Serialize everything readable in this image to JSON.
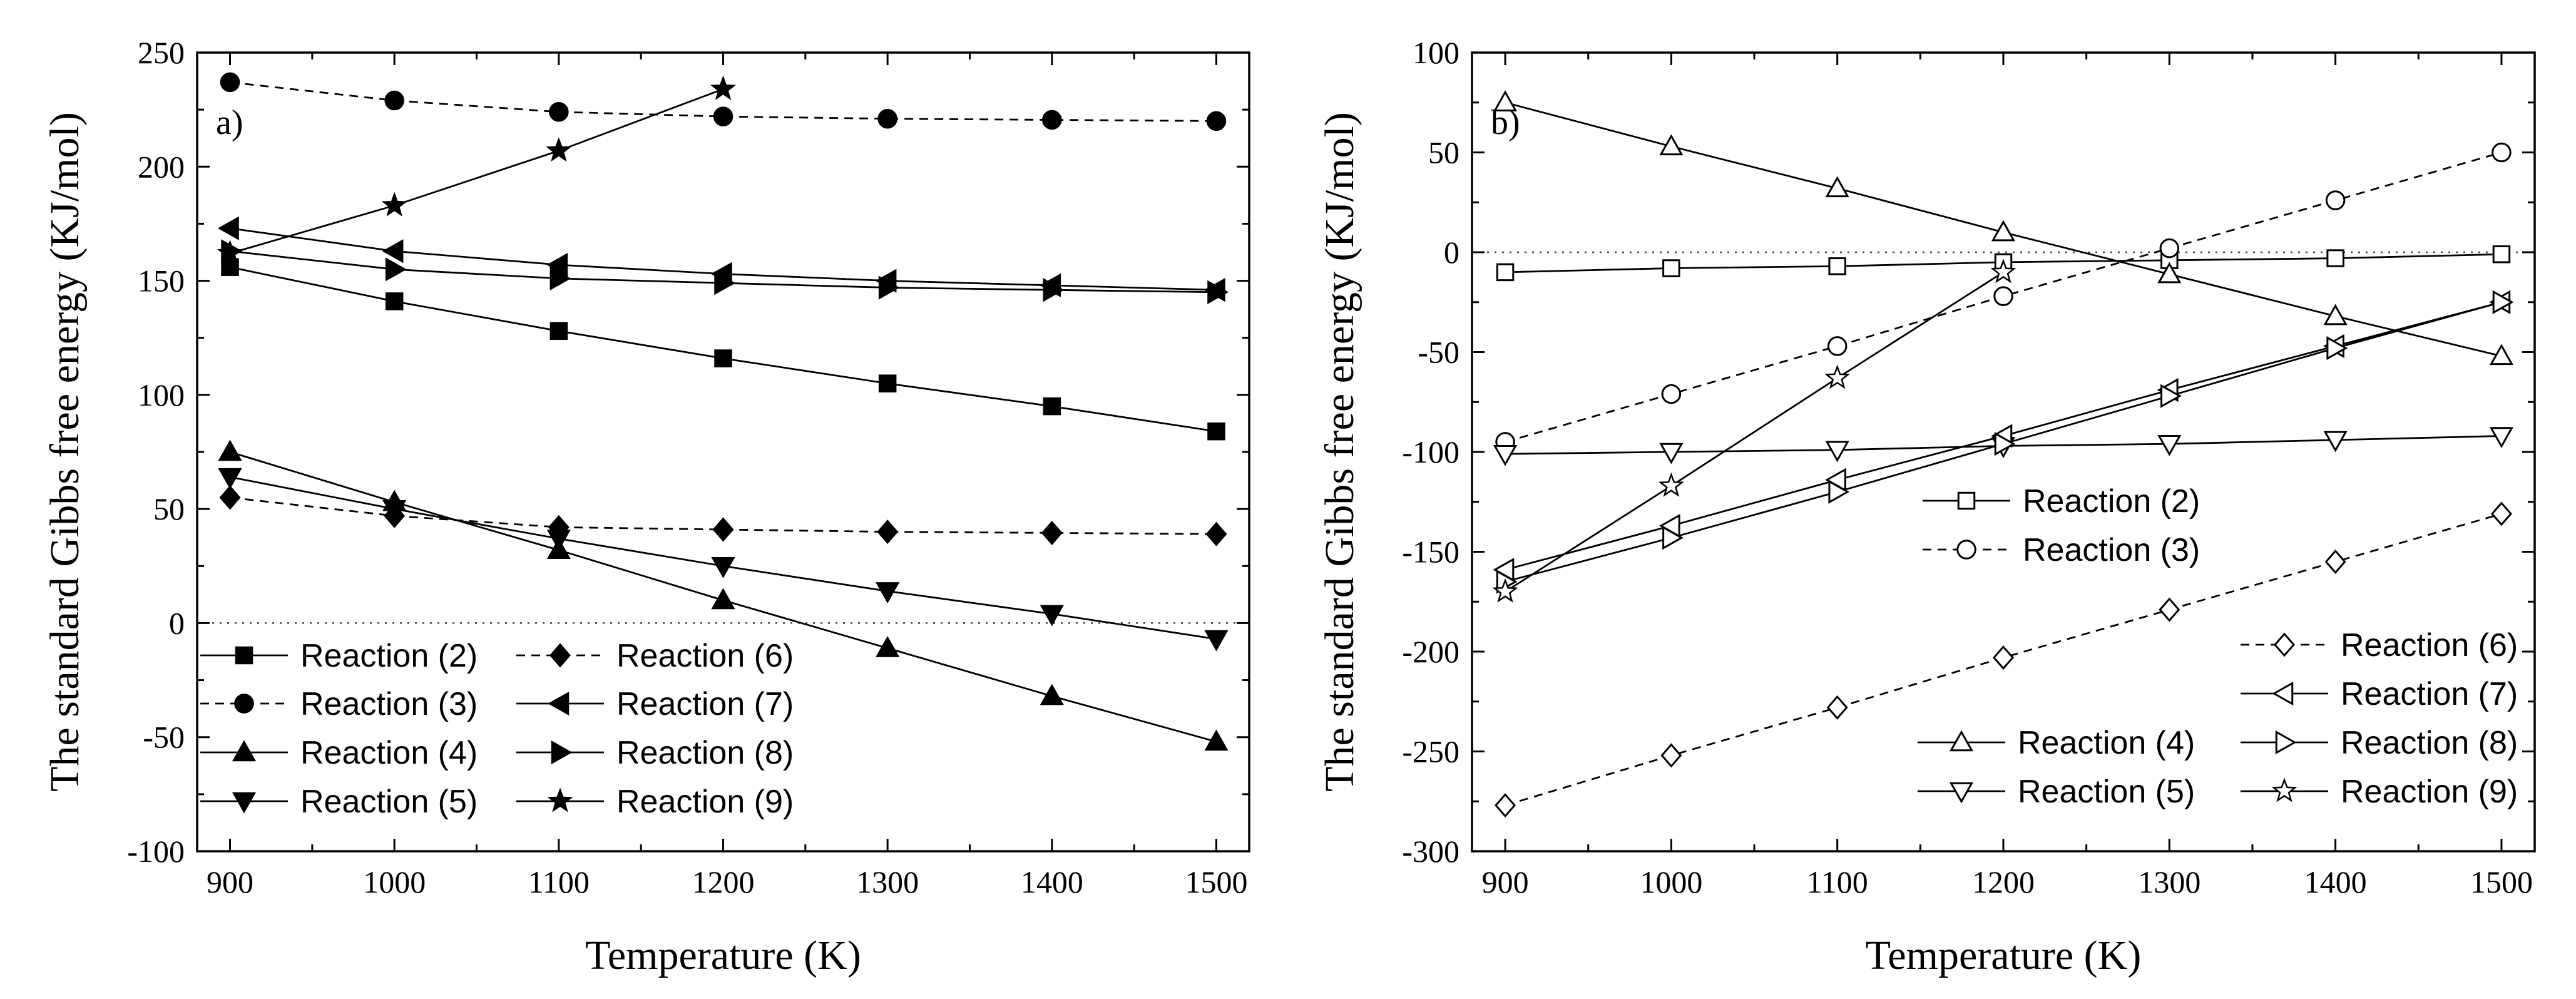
{
  "chart_data": [
    {
      "type": "line",
      "panel_label": "a)",
      "xlabel": "Temperature (K)",
      "ylabel": "The standard Gibbs free energy (KJ/mol)",
      "xlim": [
        880,
        1520
      ],
      "ylim": [
        -100,
        250
      ],
      "xticks": [
        900,
        1000,
        1100,
        1200,
        1300,
        1400,
        1500
      ],
      "yticks": [
        -100,
        -50,
        0,
        50,
        100,
        150,
        200,
        250
      ],
      "zero_line": true,
      "series": [
        {
          "name": "Reaction (2)",
          "marker": "square",
          "filled": true,
          "dash": "solid",
          "x": [
            900,
            1000,
            1100,
            1200,
            1300,
            1400,
            1500
          ],
          "y": [
            156,
            141,
            128,
            116,
            105,
            95,
            84
          ]
        },
        {
          "name": "Reaction (3)",
          "marker": "circle",
          "filled": true,
          "dash": "dashed",
          "x": [
            900,
            1000,
            1100,
            1200,
            1300,
            1400,
            1500
          ],
          "y": [
            237,
            229,
            224,
            222,
            221,
            220.5,
            220
          ]
        },
        {
          "name": "Reaction (4)",
          "marker": "triangle-up",
          "filled": true,
          "dash": "solid",
          "x": [
            900,
            1000,
            1100,
            1200,
            1300,
            1400,
            1500
          ],
          "y": [
            75,
            53,
            32,
            10,
            -11,
            -32,
            -52
          ]
        },
        {
          "name": "Reaction (5)",
          "marker": "triangle-down",
          "filled": true,
          "dash": "solid",
          "x": [
            900,
            1000,
            1100,
            1200,
            1300,
            1400,
            1500
          ],
          "y": [
            64,
            50,
            37,
            25,
            14,
            4,
            -7
          ]
        },
        {
          "name": "Reaction (6)",
          "marker": "diamond",
          "filled": true,
          "dash": "dashed",
          "x": [
            900,
            1000,
            1100,
            1200,
            1300,
            1400,
            1500
          ],
          "y": [
            55,
            47,
            42,
            41,
            40,
            39.5,
            39
          ]
        },
        {
          "name": "Reaction (7)",
          "marker": "triangle-left",
          "filled": true,
          "dash": "solid",
          "x": [
            900,
            1000,
            1100,
            1200,
            1300,
            1400,
            1500
          ],
          "y": [
            173,
            163,
            157,
            153,
            150,
            148,
            146
          ]
        },
        {
          "name": "Reaction (8)",
          "marker": "triangle-right",
          "filled": true,
          "dash": "solid",
          "x": [
            900,
            1000,
            1100,
            1200,
            1300,
            1400,
            1500
          ],
          "y": [
            163,
            155,
            151,
            149,
            147,
            146,
            145
          ]
        },
        {
          "name": "Reaction (9)",
          "marker": "star",
          "filled": true,
          "dash": "solid",
          "x": [
            900,
            1000,
            1100,
            1200
          ],
          "y": [
            162,
            183,
            207,
            234
          ]
        }
      ],
      "legend_order": [
        "Reaction (2)",
        "Reaction (6)",
        "Reaction (3)",
        "Reaction (7)",
        "Reaction (4)",
        "Reaction (8)",
        "Reaction (5)",
        "Reaction (9)"
      ],
      "legend_placement": "bottom-left"
    },
    {
      "type": "line",
      "panel_label": "b)",
      "xlabel": "Temperature (K)",
      "ylabel": "The standard Gibbs free energy (KJ/mol)",
      "xlim": [
        880,
        1520
      ],
      "ylim": [
        -300,
        100
      ],
      "xticks": [
        900,
        1000,
        1100,
        1200,
        1300,
        1400,
        1500
      ],
      "yticks": [
        -300,
        -250,
        -200,
        -150,
        -100,
        -50,
        0,
        50,
        100
      ],
      "zero_line": true,
      "series": [
        {
          "name": "Reaction (2)",
          "marker": "square",
          "filled": false,
          "dash": "solid",
          "x": [
            900,
            1000,
            1100,
            1200,
            1300,
            1400,
            1500
          ],
          "y": [
            -10,
            -8,
            -7,
            -5,
            -4,
            -3,
            -1
          ]
        },
        {
          "name": "Reaction (3)",
          "marker": "circle",
          "filled": false,
          "dash": "dashed",
          "x": [
            900,
            1000,
            1100,
            1200,
            1300,
            1400,
            1500
          ],
          "y": [
            -95,
            -71,
            -47,
            -22,
            2,
            26,
            50
          ]
        },
        {
          "name": "Reaction (4)",
          "marker": "triangle-up",
          "filled": false,
          "dash": "solid",
          "x": [
            900,
            1000,
            1100,
            1200,
            1300,
            1400,
            1500
          ],
          "y": [
            75,
            53,
            32,
            10,
            -11,
            -32,
            -52
          ]
        },
        {
          "name": "Reaction (5)",
          "marker": "triangle-down",
          "filled": false,
          "dash": "solid",
          "x": [
            900,
            1000,
            1100,
            1200,
            1300,
            1400,
            1500
          ],
          "y": [
            -101,
            -100,
            -99,
            -97,
            -96,
            -94,
            -92
          ]
        },
        {
          "name": "Reaction (6)",
          "marker": "diamond",
          "filled": false,
          "dash": "dashed",
          "x": [
            900,
            1000,
            1100,
            1200,
            1300,
            1400,
            1500
          ],
          "y": [
            -277,
            -252,
            -228,
            -203,
            -179,
            -155,
            -131
          ]
        },
        {
          "name": "Reaction (7)",
          "marker": "triangle-left",
          "filled": false,
          "dash": "solid",
          "x": [
            900,
            1000,
            1100,
            1200,
            1300,
            1400,
            1500
          ],
          "y": [
            -159,
            -137,
            -114,
            -92,
            -69,
            -47,
            -25
          ]
        },
        {
          "name": "Reaction (8)",
          "marker": "triangle-right",
          "filled": false,
          "dash": "solid",
          "x": [
            900,
            1000,
            1100,
            1200,
            1300,
            1400,
            1500
          ],
          "y": [
            -165,
            -143,
            -120,
            -96,
            -72,
            -48,
            -25
          ]
        },
        {
          "name": "Reaction (9)",
          "marker": "star",
          "filled": false,
          "dash": "solid",
          "x": [
            900,
            1000,
            1100,
            1200
          ],
          "y": [
            -170,
            -117,
            -63,
            -10
          ]
        }
      ],
      "legend_groups": [
        [
          "Reaction (2)",
          "Reaction (3)"
        ],
        [
          "Reaction (6)",
          "Reaction (7)",
          "Reaction (8)",
          "Reaction (9)"
        ],
        [
          "Reaction (4)",
          "Reaction (5)"
        ]
      ],
      "legend_placement": "center and bottom-right"
    }
  ]
}
